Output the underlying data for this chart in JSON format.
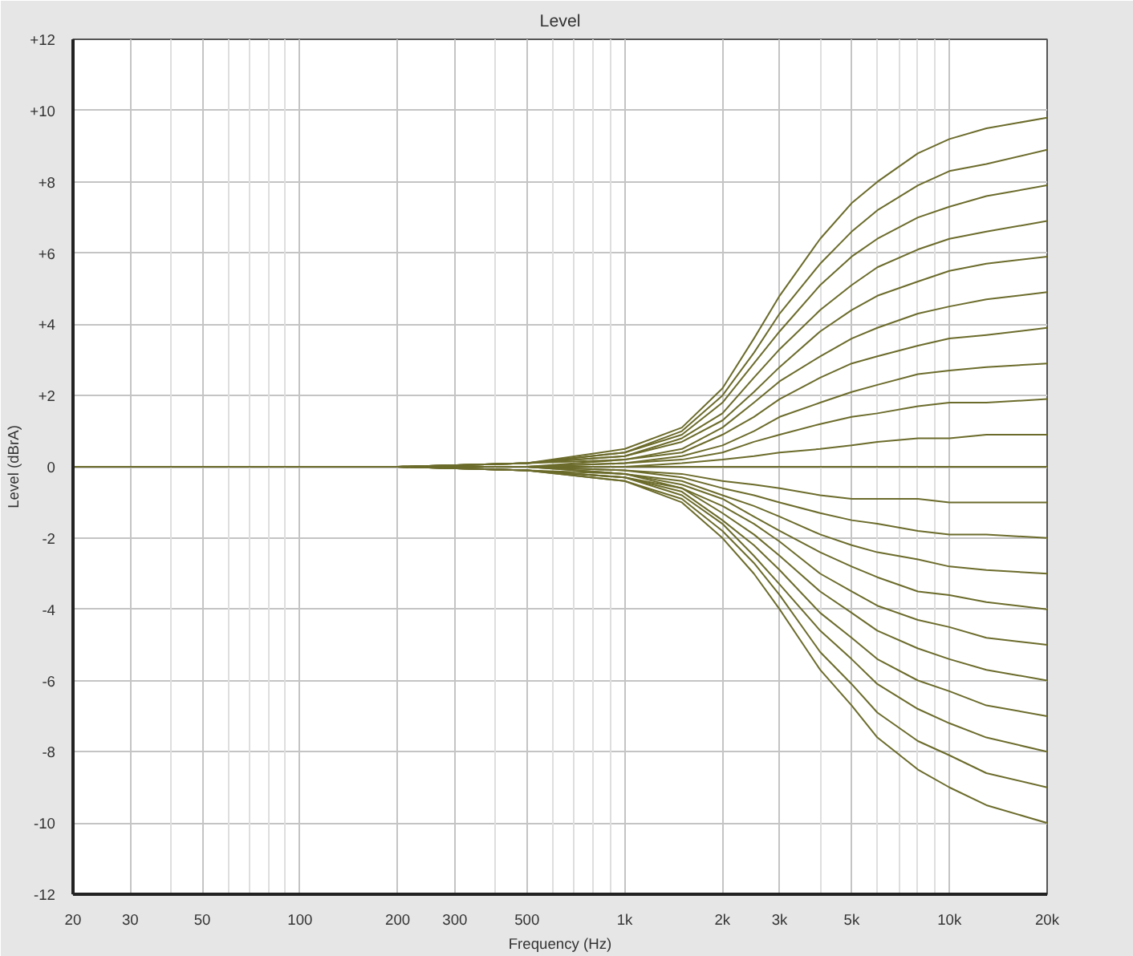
{
  "chart_data": {
    "type": "line",
    "title": "Level",
    "xlabel": "Frequency (Hz)",
    "ylabel": "Level (dBrA)",
    "log": "x",
    "grid": true,
    "xlim": [
      20,
      20000
    ],
    "ylim": [
      -12,
      12
    ],
    "xticks": [
      20,
      30,
      {
        "value": 40,
        "label": null
      },
      50,
      {
        "value": 60,
        "label": null
      },
      {
        "value": 70,
        "label": null
      },
      {
        "value": 80,
        "label": null
      },
      {
        "value": 90,
        "label": null
      },
      100,
      200,
      300,
      {
        "value": 400,
        "label": null
      },
      500,
      {
        "value": 600,
        "label": null
      },
      {
        "value": 700,
        "label": null
      },
      {
        "value": 800,
        "label": null
      },
      {
        "value": 900,
        "label": null
      },
      {
        "value": 1000,
        "label": "1k"
      },
      {
        "value": 2000,
        "label": "2k"
      },
      {
        "value": 3000,
        "label": "3k"
      },
      {
        "value": 4000,
        "label": null
      },
      {
        "value": 5000,
        "label": "5k"
      },
      {
        "value": 6000,
        "label": null
      },
      {
        "value": 7000,
        "label": null
      },
      {
        "value": 8000,
        "label": null
      },
      {
        "value": 9000,
        "label": null
      },
      {
        "value": 10000,
        "label": "10k"
      },
      {
        "value": 20000,
        "label": "20k"
      }
    ],
    "yticks": [
      {
        "value": 12,
        "label": "+12"
      },
      {
        "value": 10,
        "label": "+10"
      },
      {
        "value": 8,
        "label": "+8"
      },
      {
        "value": 6,
        "label": "+6"
      },
      {
        "value": 4,
        "label": "+4"
      },
      {
        "value": 2,
        "label": "+2"
      },
      0,
      -2,
      -4,
      -6,
      -8,
      -10,
      -12
    ],
    "x": [
      20,
      200,
      500,
      1000,
      1500,
      2000,
      2500,
      3000,
      4000,
      5000,
      6000,
      8000,
      10000,
      13000,
      20000
    ],
    "series": [
      {
        "color": "#6b6b2b",
        "values": [
          0,
          0,
          0.1,
          0.5,
          1.1,
          2.2,
          3.6,
          4.8,
          6.4,
          7.4,
          8.0,
          8.8,
          9.2,
          9.5,
          9.8
        ]
      },
      {
        "color": "#6b6b2b",
        "values": [
          0,
          0,
          0.1,
          0.4,
          1.0,
          2.0,
          3.2,
          4.3,
          5.7,
          6.6,
          7.2,
          7.9,
          8.3,
          8.5,
          8.9
        ]
      },
      {
        "color": "#6b6b2b",
        "values": [
          0,
          0,
          0.1,
          0.4,
          0.9,
          1.8,
          2.9,
          3.8,
          5.1,
          5.9,
          6.4,
          7.0,
          7.3,
          7.6,
          7.9
        ]
      },
      {
        "color": "#6b6b2b",
        "values": [
          0,
          0,
          0.1,
          0.3,
          0.8,
          1.5,
          2.5,
          3.3,
          4.4,
          5.1,
          5.6,
          6.1,
          6.4,
          6.6,
          6.9
        ]
      },
      {
        "color": "#6b6b2b",
        "values": [
          0,
          0,
          0.1,
          0.3,
          0.7,
          1.3,
          2.1,
          2.8,
          3.8,
          4.4,
          4.8,
          5.2,
          5.5,
          5.7,
          5.9
        ]
      },
      {
        "color": "#6b6b2b",
        "values": [
          0,
          0,
          0.1,
          0.2,
          0.5,
          1.1,
          1.8,
          2.4,
          3.1,
          3.6,
          3.9,
          4.3,
          4.5,
          4.7,
          4.9
        ]
      },
      {
        "color": "#6b6b2b",
        "values": [
          0,
          0,
          0.0,
          0.2,
          0.4,
          0.9,
          1.4,
          1.9,
          2.5,
          2.9,
          3.1,
          3.4,
          3.6,
          3.7,
          3.9
        ]
      },
      {
        "color": "#6b6b2b",
        "values": [
          0,
          0,
          0.0,
          0.1,
          0.3,
          0.6,
          1.0,
          1.4,
          1.8,
          2.1,
          2.3,
          2.6,
          2.7,
          2.8,
          2.9
        ]
      },
      {
        "color": "#6b6b2b",
        "values": [
          0,
          0,
          0.0,
          0.1,
          0.2,
          0.4,
          0.7,
          0.9,
          1.2,
          1.4,
          1.5,
          1.7,
          1.8,
          1.8,
          1.9
        ]
      },
      {
        "color": "#6b6b2b",
        "values": [
          0,
          0,
          0.0,
          0.0,
          0.1,
          0.2,
          0.3,
          0.4,
          0.5,
          0.6,
          0.7,
          0.8,
          0.8,
          0.9,
          0.9
        ]
      },
      {
        "color": "#6b6b2b",
        "values": [
          0,
          0,
          0,
          0,
          0,
          0,
          0,
          0,
          0,
          0,
          0,
          0,
          0,
          0,
          0
        ]
      },
      {
        "color": "#6b6b2b",
        "values": [
          0,
          0,
          0.0,
          -0.1,
          -0.2,
          -0.4,
          -0.5,
          -0.6,
          -0.8,
          -0.9,
          -0.9,
          -0.9,
          -1.0,
          -1.0,
          -1.0
        ]
      },
      {
        "color": "#6b6b2b",
        "values": [
          0,
          0,
          0.0,
          -0.1,
          -0.3,
          -0.6,
          -0.8,
          -1.0,
          -1.3,
          -1.5,
          -1.6,
          -1.8,
          -1.9,
          -1.9,
          -2.0
        ]
      },
      {
        "color": "#6b6b2b",
        "values": [
          0,
          0,
          0.0,
          -0.2,
          -0.4,
          -0.8,
          -1.1,
          -1.4,
          -1.9,
          -2.2,
          -2.4,
          -2.6,
          -2.8,
          -2.9,
          -3.0
        ]
      },
      {
        "color": "#6b6b2b",
        "values": [
          0,
          0,
          0.0,
          -0.2,
          -0.5,
          -0.9,
          -1.4,
          -1.8,
          -2.4,
          -2.8,
          -3.1,
          -3.5,
          -3.6,
          -3.8,
          -4.0
        ]
      },
      {
        "color": "#6b6b2b",
        "values": [
          0,
          0,
          -0.1,
          -0.2,
          -0.6,
          -1.1,
          -1.6,
          -2.1,
          -3.0,
          -3.5,
          -3.9,
          -4.3,
          -4.5,
          -4.8,
          -5.0
        ]
      },
      {
        "color": "#6b6b2b",
        "values": [
          0,
          0,
          -0.1,
          -0.3,
          -0.6,
          -1.3,
          -1.9,
          -2.5,
          -3.5,
          -4.1,
          -4.6,
          -5.1,
          -5.4,
          -5.7,
          -6.0
        ]
      },
      {
        "color": "#6b6b2b",
        "values": [
          0,
          0,
          -0.1,
          -0.3,
          -0.7,
          -1.5,
          -2.2,
          -2.9,
          -4.1,
          -4.8,
          -5.4,
          -6.0,
          -6.3,
          -6.7,
          -7.0
        ]
      },
      {
        "color": "#6b6b2b",
        "values": [
          0,
          0,
          -0.1,
          -0.3,
          -0.8,
          -1.6,
          -2.5,
          -3.3,
          -4.6,
          -5.4,
          -6.1,
          -6.8,
          -7.2,
          -7.6,
          -8.0
        ]
      },
      {
        "color": "#6b6b2b",
        "values": [
          0,
          0,
          -0.1,
          -0.4,
          -0.9,
          -1.8,
          -2.7,
          -3.6,
          -5.2,
          -6.1,
          -6.9,
          -7.7,
          -8.1,
          -8.6,
          -9.0
        ]
      },
      {
        "color": "#6b6b2b",
        "values": [
          0,
          0,
          -0.1,
          -0.4,
          -1.0,
          -2.0,
          -3.0,
          -4.0,
          -5.7,
          -6.7,
          -7.6,
          -8.5,
          -9.0,
          -9.5,
          -10.0
        ]
      }
    ]
  }
}
